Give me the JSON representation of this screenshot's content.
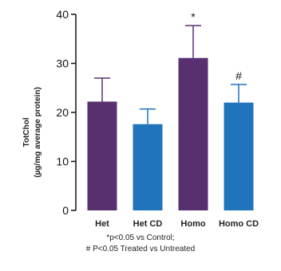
{
  "chart_data": {
    "type": "bar",
    "ylabel_line1": "TotChol",
    "ylabel_line2": "(µg/mg average protein)",
    "categories": [
      "Het",
      "Het CD",
      "Homo",
      "Homo CD"
    ],
    "values": [
      22.2,
      17.6,
      31.1,
      22.0
    ],
    "errors": [
      4.8,
      3.1,
      6.6,
      3.7
    ],
    "annotations": [
      "",
      "",
      "*",
      "#"
    ],
    "colors": [
      "#59306f",
      "#1f74bc",
      "#59306f",
      "#1f74bc"
    ],
    "ylim": [
      0,
      40
    ],
    "yticks": [
      0,
      10,
      20,
      30,
      40
    ],
    "grid": false
  },
  "footnote": {
    "line1": "*p<0.05 vs Control;",
    "line2": "# P<0.05 Treated vs Untreated"
  }
}
